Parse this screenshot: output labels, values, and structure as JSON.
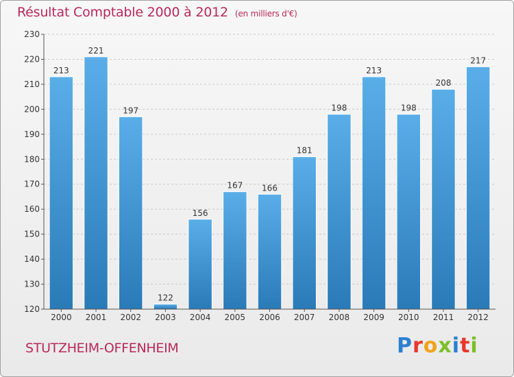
{
  "header": {
    "title": "Résultat Comptable 2000 à 2012",
    "unit": "(en milliers d'€)"
  },
  "footer": {
    "commune": "STUTZHEIM-OFFENHEIM",
    "logo": [
      "P",
      "r",
      "o",
      "x",
      "i",
      "t",
      "i"
    ]
  },
  "colors": {
    "accent": "#b8285a",
    "bar_top": "#5aaee8",
    "bar_bottom": "#2a7ab8",
    "logo": [
      "#2d7fd1",
      "#e8372c",
      "#f2a31b",
      "#7cbf2a",
      "#2d7fd1",
      "#e8372c",
      "#7cbf2a"
    ]
  },
  "chart_data": {
    "type": "bar",
    "categories": [
      "2000",
      "2001",
      "2002",
      "2003",
      "2004",
      "2005",
      "2006",
      "2007",
      "2008",
      "2009",
      "2010",
      "2011",
      "2012"
    ],
    "values": [
      213,
      221,
      197,
      122,
      156,
      167,
      166,
      181,
      198,
      213,
      198,
      208,
      217
    ],
    "ylim": [
      120,
      230
    ],
    "yticks": [
      120,
      130,
      140,
      150,
      160,
      170,
      180,
      190,
      200,
      210,
      220,
      230
    ],
    "grid": true
  }
}
